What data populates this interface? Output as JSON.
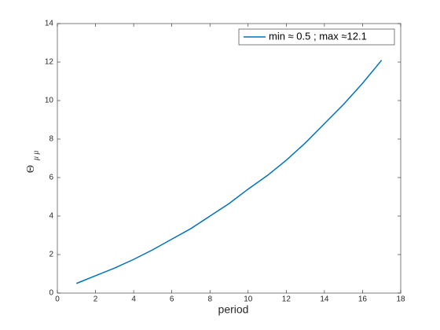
{
  "chart_data": {
    "type": "line",
    "xlabel": "period",
    "ylabel": {
      "symbol": "Θ",
      "subscript": "μ μ"
    },
    "x": [
      1,
      2,
      3,
      4,
      5,
      6,
      7,
      8,
      9,
      10,
      11,
      12,
      13,
      14,
      15,
      16,
      17
    ],
    "series": [
      {
        "name": "min ≈ 0.5 ; max ≈12.1",
        "color": "#0072bd",
        "values": [
          0.5,
          0.9,
          1.3,
          1.75,
          2.25,
          2.8,
          3.35,
          4.0,
          4.65,
          5.4,
          6.1,
          6.9,
          7.8,
          8.8,
          9.8,
          10.9,
          12.1
        ]
      }
    ],
    "xlim": [
      0,
      18
    ],
    "xticks": [
      0,
      2,
      4,
      6,
      8,
      10,
      12,
      14,
      16,
      18
    ],
    "ylim": [
      0,
      14
    ],
    "yticks": [
      0,
      2,
      4,
      6,
      8,
      10,
      12,
      14
    ],
    "legend": "upper right"
  }
}
